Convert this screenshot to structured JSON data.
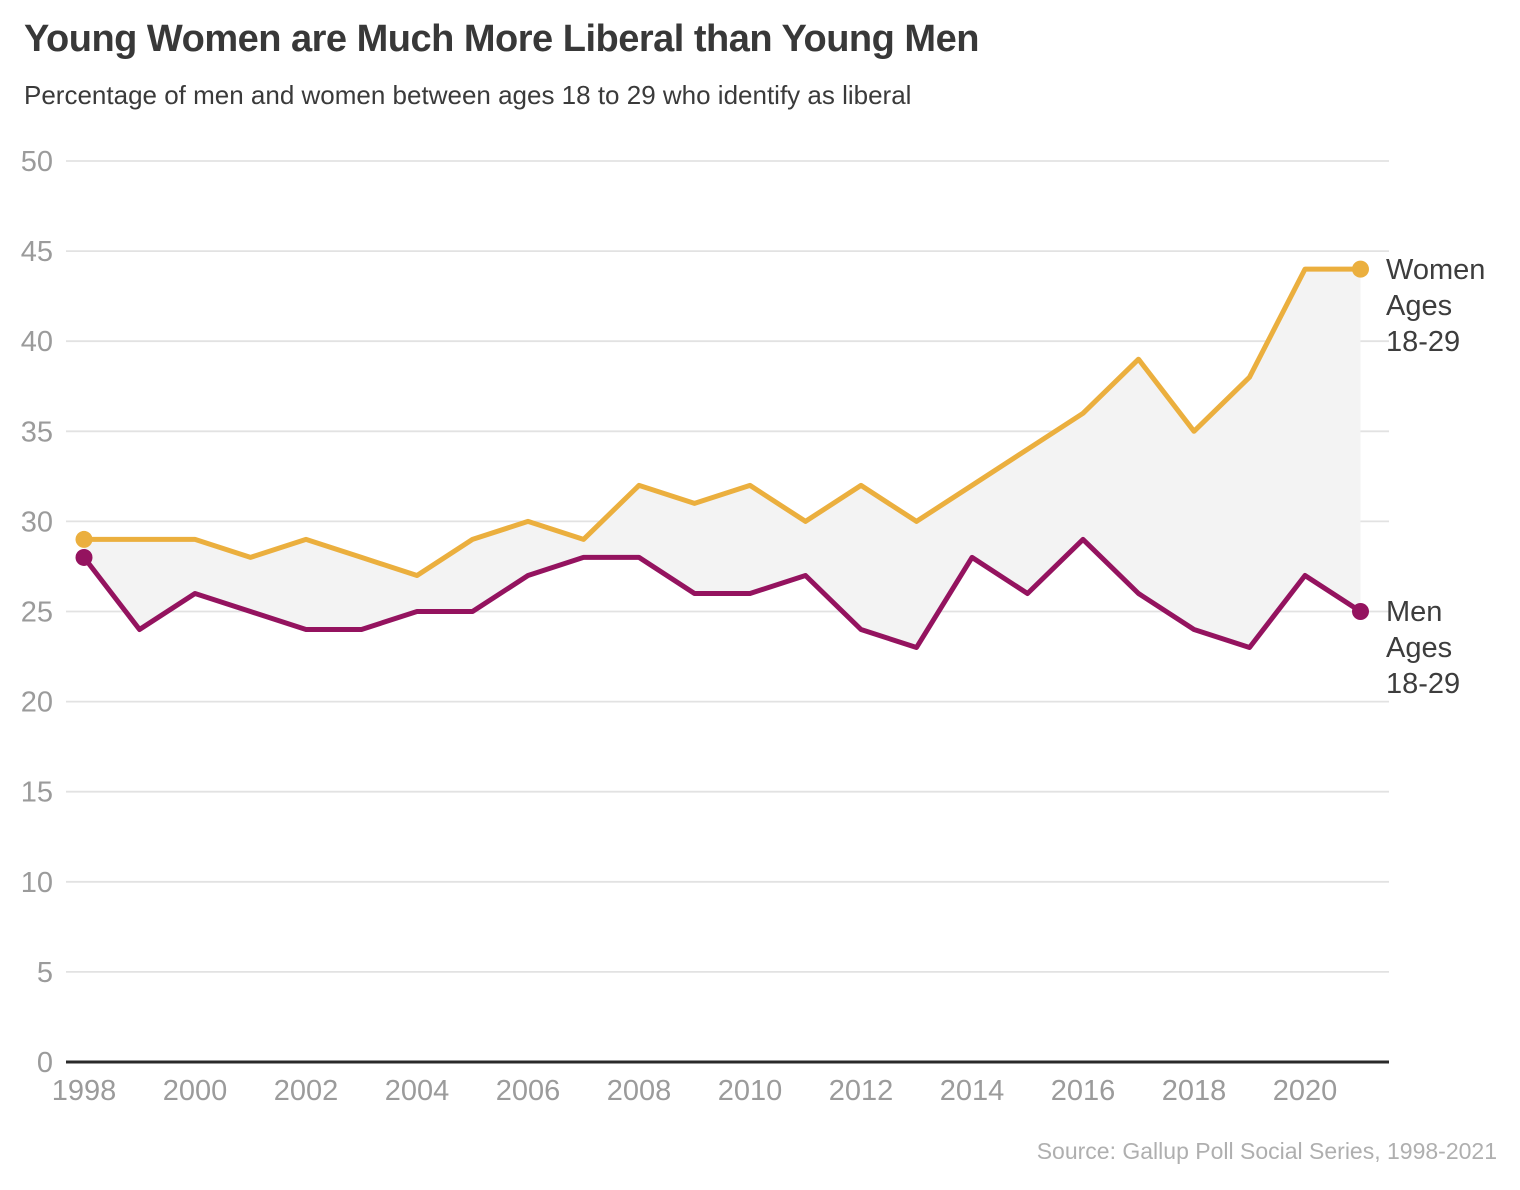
{
  "header": {
    "title": "Young Women are Much More Liberal than Young Men",
    "subtitle": "Percentage of men and women between ages 18 to 29 who identify as liberal"
  },
  "chart_data": {
    "type": "line",
    "x": [
      1998,
      1999,
      2000,
      2001,
      2002,
      2003,
      2004,
      2005,
      2006,
      2007,
      2008,
      2009,
      2010,
      2011,
      2012,
      2013,
      2014,
      2015,
      2016,
      2017,
      2018,
      2019,
      2020,
      2021
    ],
    "series": [
      {
        "name": "Women Ages 18-29",
        "color": "#EBAF3E",
        "values": [
          29,
          29,
          29,
          28,
          29,
          28,
          27,
          29,
          30,
          29,
          32,
          31,
          32,
          30,
          32,
          30,
          32,
          34,
          36,
          39,
          35,
          38,
          44,
          44
        ]
      },
      {
        "name": "Men Ages 18-29",
        "color": "#94135F",
        "values": [
          28,
          24,
          26,
          25,
          24,
          24,
          25,
          25,
          27,
          28,
          28,
          26,
          26,
          27,
          24,
          23,
          28,
          26,
          29,
          26,
          24,
          23,
          27,
          25
        ]
      }
    ],
    "ylim": [
      0,
      50
    ],
    "y_ticks": [
      0,
      5,
      10,
      15,
      20,
      25,
      30,
      35,
      40,
      45,
      50
    ],
    "x_tick_labels": [
      "1998",
      "2000",
      "2002",
      "2004",
      "2006",
      "2008",
      "2010",
      "2012",
      "2014",
      "2016",
      "2018",
      "2020"
    ],
    "grid": "horizontal",
    "area_fill_between_series": true,
    "markers": "first-and-last-point",
    "legend_position": "right-of-line-ends"
  },
  "series_labels": {
    "women_text": "Women\nAges\n18-29",
    "men_text": "Men\nAges\n18-29"
  },
  "footer": {
    "source": "Source: Gallup Poll Social Series, 1998-2021"
  },
  "colors": {
    "women_line": "#EBAF3E",
    "men_line": "#94135F",
    "band_fill": "#F3F3F3",
    "gridline": "#E2E2E2",
    "axis_line": "#2A2A2A",
    "tick_text": "#9B9B9B",
    "title_text": "#383838",
    "label_text": "#3D3D3D",
    "source_text": "#AFAFAF"
  }
}
